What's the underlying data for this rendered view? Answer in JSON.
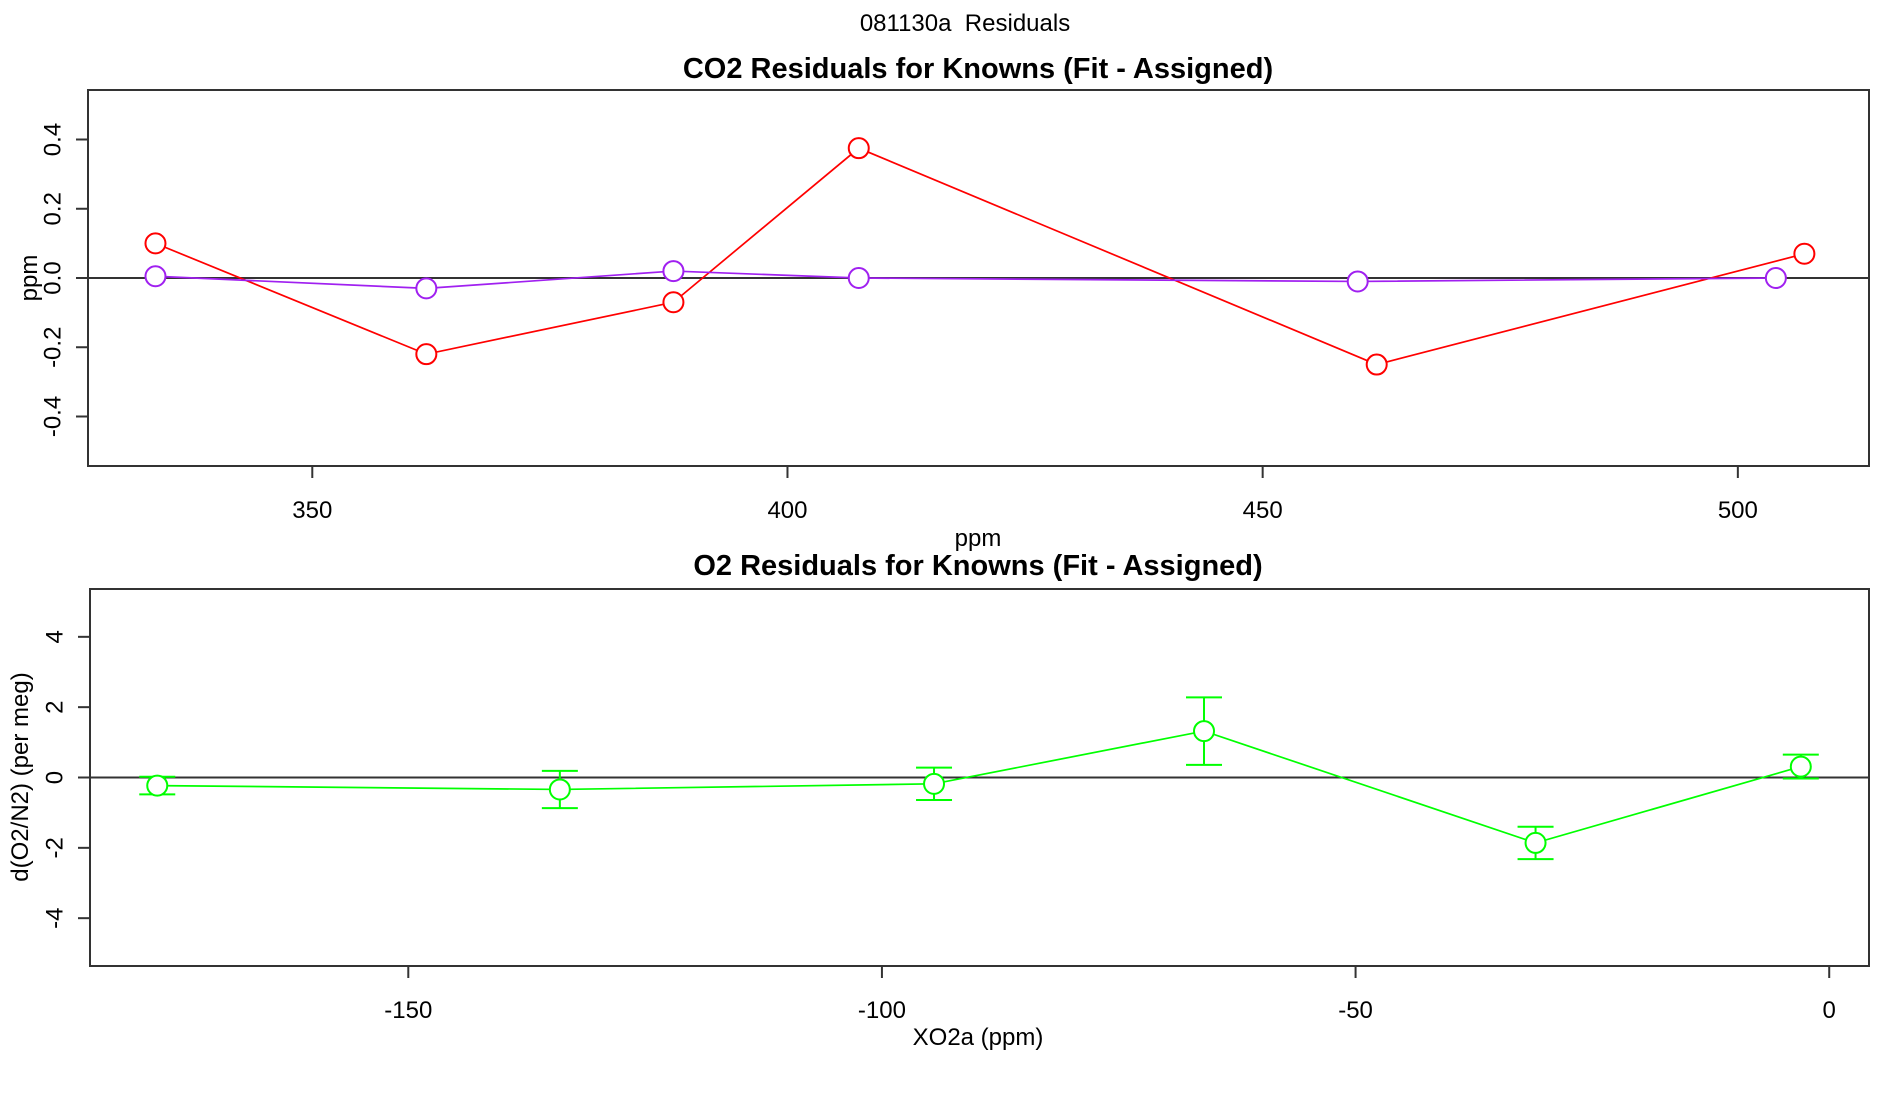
{
  "figure": {
    "main_title": "081130a  Residuals",
    "background": "#ffffff",
    "axis_color": "#333333",
    "text_color": "#000000"
  },
  "chart_data": [
    {
      "type": "line",
      "title": "CO2 Residuals for Knowns (Fit - Assigned)",
      "xlabel": "ppm",
      "ylabel": "ppm",
      "xlim": [
        326.4,
        513.8
      ],
      "ylim": [
        -0.543,
        0.543
      ],
      "grid": false,
      "legend": null,
      "zero_line": true,
      "x_ticks": {
        "values": [
          350,
          400,
          450,
          500
        ],
        "labels": [
          "350",
          "400",
          "450",
          "500"
        ]
      },
      "y_ticks": {
        "values": [
          -0.4,
          -0.2,
          0,
          0.2,
          0.4
        ],
        "labels": [
          "-0.4",
          "-0.2",
          "0.0",
          "0.2",
          "0.4"
        ]
      },
      "series": [
        {
          "name": "co2-residual-red",
          "color": "#ff0000",
          "marker": "open-circle",
          "x": [
            333.5,
            362,
            388,
            407.5,
            462,
            507
          ],
          "y": [
            0.1,
            -0.22,
            -0.07,
            0.375,
            -0.25,
            0.07
          ]
        },
        {
          "name": "co2-residual-purple",
          "color": "#a020f0",
          "marker": "open-circle",
          "x": [
            333.5,
            362,
            388,
            407.5,
            460,
            504
          ],
          "y": [
            0.005,
            -0.03,
            0.02,
            0.0,
            -0.01,
            0.0
          ]
        }
      ]
    },
    {
      "type": "line-errorbar",
      "title": "O2 Residuals for Knowns (Fit - Assigned)",
      "xlabel": "XO2a (ppm)",
      "ylabel": "d(O2/N2) (per meg)",
      "xlim": [
        -183.6,
        4.2
      ],
      "ylim": [
        -5.36,
        5.36
      ],
      "grid": false,
      "legend": null,
      "zero_line": true,
      "x_ticks": {
        "values": [
          -150,
          -100,
          -50,
          0
        ],
        "labels": [
          "-150",
          "-100",
          "-50",
          "0"
        ]
      },
      "y_ticks": {
        "values": [
          -4,
          -2,
          0,
          2,
          4
        ],
        "labels": [
          "-4",
          "-2",
          "0",
          "2",
          "4"
        ]
      },
      "series": [
        {
          "name": "o2-residual-green",
          "color": "#00ff00",
          "marker": "open-circle",
          "x": [
            -176.5,
            -134,
            -94.5,
            -66,
            -31,
            -3
          ],
          "y": [
            -0.23,
            -0.34,
            -0.18,
            1.32,
            -1.86,
            0.31
          ],
          "yerr": [
            0.25,
            0.53,
            0.46,
            0.96,
            0.46,
            0.34
          ]
        }
      ]
    }
  ]
}
